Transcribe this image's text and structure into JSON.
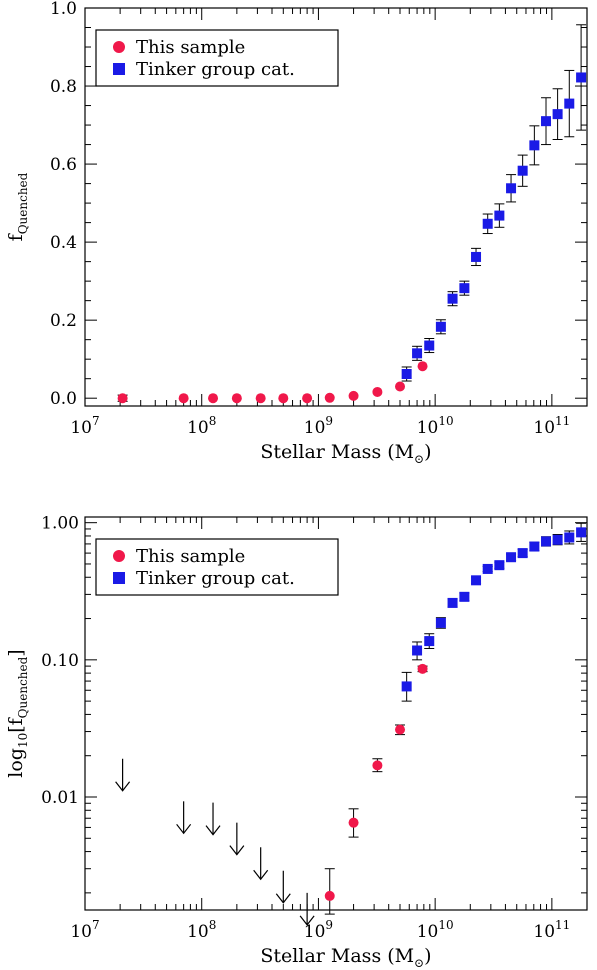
{
  "chart_data": [
    {
      "type": "scatter",
      "xlabel": "Stellar Mass (M⊙)",
      "ylabel": "fQuenched",
      "xscale": "log",
      "yscale": "linear",
      "xlim": [
        10000000.0,
        200000000000.0
      ],
      "ylim": [
        -0.02,
        1.0
      ],
      "x_ticks": [
        "10^7",
        "10^8",
        "10^9",
        "10^10",
        "10^11"
      ],
      "y_ticks": [
        "0.0",
        "0.2",
        "0.4",
        "0.6",
        "0.8",
        "1.0"
      ],
      "legend": {
        "position": "top-left",
        "entries": [
          "This sample",
          "Tinker group cat."
        ]
      },
      "series": [
        {
          "name": "This sample",
          "marker": "circle",
          "color": "#f0184a",
          "points": [
            {
              "x": 21000000.0,
              "y": 0.0,
              "err": 0.008
            },
            {
              "x": 70000000.0,
              "y": 0.0
            },
            {
              "x": 125000000.0,
              "y": 0.0
            },
            {
              "x": 200000000.0,
              "y": 0.0
            },
            {
              "x": 320000000.0,
              "y": 0.0
            },
            {
              "x": 500000000.0,
              "y": 0.0
            },
            {
              "x": 800000000.0,
              "y": 0.0
            },
            {
              "x": 1250000000.0,
              "y": 0.001
            },
            {
              "x": 2000000000.0,
              "y": 0.006
            },
            {
              "x": 3200000000.0,
              "y": 0.016
            },
            {
              "x": 5000000000.0,
              "y": 0.03
            },
            {
              "x": 7800000000.0,
              "y": 0.082
            }
          ]
        },
        {
          "name": "Tinker group cat.",
          "marker": "square",
          "color": "#1a1ae6",
          "points": [
            {
              "x": 5700000000.0,
              "y": 0.062,
              "err": 0.018
            },
            {
              "x": 7000000000.0,
              "y": 0.115,
              "err": 0.018
            },
            {
              "x": 8900000000.0,
              "y": 0.135,
              "err": 0.018
            },
            {
              "x": 11200000000.0,
              "y": 0.183,
              "err": 0.018
            },
            {
              "x": 14100000000.0,
              "y": 0.255,
              "err": 0.018
            },
            {
              "x": 17800000000.0,
              "y": 0.282,
              "err": 0.018
            },
            {
              "x": 22400000000.0,
              "y": 0.362,
              "err": 0.022
            },
            {
              "x": 28200000000.0,
              "y": 0.447,
              "err": 0.025
            },
            {
              "x": 35500000000.0,
              "y": 0.468,
              "err": 0.03
            },
            {
              "x": 44700000000.0,
              "y": 0.538,
              "err": 0.035
            },
            {
              "x": 56200000000.0,
              "y": 0.583,
              "err": 0.04
            },
            {
              "x": 70800000000.0,
              "y": 0.648,
              "err": 0.05
            },
            {
              "x": 89100000000.0,
              "y": 0.71,
              "err": 0.06
            },
            {
              "x": 112000000000.0,
              "y": 0.728,
              "err": 0.065
            },
            {
              "x": 141000000000.0,
              "y": 0.755,
              "err": 0.085
            },
            {
              "x": 178000000000.0,
              "y": 0.822,
              "err": 0.135
            }
          ]
        }
      ]
    },
    {
      "type": "scatter",
      "xlabel": "Stellar Mass (M⊙)",
      "ylabel": "log10[fQuenched]",
      "xscale": "log",
      "yscale": "log",
      "xlim": [
        10000000.0,
        200000000000.0
      ],
      "ylim": [
        0.0015,
        1.1
      ],
      "x_ticks": [
        "10^7",
        "10^8",
        "10^9",
        "10^10",
        "10^11"
      ],
      "y_ticks": [
        "0.01",
        "0.10",
        "1.00"
      ],
      "legend": {
        "position": "top-left",
        "entries": [
          "This sample",
          "Tinker group cat."
        ]
      },
      "upper_limits": [
        {
          "x": 21000000.0,
          "y": 0.019
        },
        {
          "x": 70000000.0,
          "y": 0.0093
        },
        {
          "x": 125000000.0,
          "y": 0.0091
        },
        {
          "x": 200000000.0,
          "y": 0.0065
        },
        {
          "x": 320000000.0,
          "y": 0.0043
        },
        {
          "x": 500000000.0,
          "y": 0.0029
        },
        {
          "x": 800000000.0,
          "y": 0.002
        }
      ],
      "series": [
        {
          "name": "This sample",
          "marker": "circle",
          "color": "#f0184a",
          "points": [
            {
              "x": 1250000000.0,
              "y": 0.0019,
              "lo": 0.0014,
              "hi": 0.003
            },
            {
              "x": 2000000000.0,
              "y": 0.0065,
              "lo": 0.0051,
              "hi": 0.0082
            },
            {
              "x": 3200000000.0,
              "y": 0.017,
              "lo": 0.0153,
              "hi": 0.019
            },
            {
              "x": 5000000000.0,
              "y": 0.031,
              "lo": 0.0285,
              "hi": 0.0335
            },
            {
              "x": 7800000000.0,
              "y": 0.086,
              "lo": 0.082,
              "hi": 0.09
            }
          ]
        },
        {
          "name": "Tinker group cat.",
          "marker": "square",
          "color": "#1a1ae6",
          "points": [
            {
              "x": 5700000000.0,
              "y": 0.064,
              "lo": 0.05,
              "hi": 0.081
            },
            {
              "x": 7000000000.0,
              "y": 0.117,
              "lo": 0.1,
              "hi": 0.135
            },
            {
              "x": 8900000000.0,
              "y": 0.137,
              "lo": 0.121,
              "hi": 0.155
            },
            {
              "x": 11200000000.0,
              "y": 0.186,
              "lo": 0.17,
              "hi": 0.203
            },
            {
              "x": 14100000000.0,
              "y": 0.26,
              "lo": 0.243,
              "hi": 0.278
            },
            {
              "x": 17800000000.0,
              "y": 0.288,
              "lo": 0.27,
              "hi": 0.307
            },
            {
              "x": 22400000000.0,
              "y": 0.38,
              "lo": 0.36,
              "hi": 0.4
            },
            {
              "x": 28200000000.0,
              "y": 0.46,
              "lo": 0.44,
              "hi": 0.48
            },
            {
              "x": 35500000000.0,
              "y": 0.49,
              "lo": 0.465,
              "hi": 0.515
            },
            {
              "x": 44700000000.0,
              "y": 0.56,
              "lo": 0.53,
              "hi": 0.59
            },
            {
              "x": 56200000000.0,
              "y": 0.6,
              "lo": 0.565,
              "hi": 0.64
            },
            {
              "x": 70800000000.0,
              "y": 0.67,
              "lo": 0.625,
              "hi": 0.72
            },
            {
              "x": 89100000000.0,
              "y": 0.73,
              "lo": 0.675,
              "hi": 0.79
            },
            {
              "x": 112000000000.0,
              "y": 0.75,
              "lo": 0.69,
              "hi": 0.82
            },
            {
              "x": 141000000000.0,
              "y": 0.78,
              "lo": 0.7,
              "hi": 0.87
            },
            {
              "x": 178000000000.0,
              "y": 0.85,
              "lo": 0.73,
              "hi": 0.99
            }
          ]
        }
      ]
    }
  ]
}
